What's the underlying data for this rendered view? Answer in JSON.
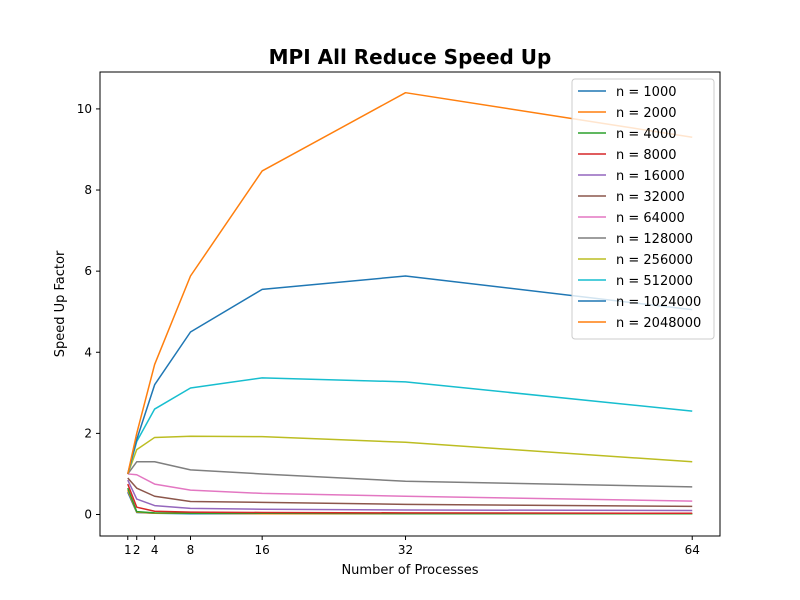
{
  "chart_data": {
    "type": "line",
    "title": "MPI All Reduce Speed Up",
    "xlabel": "Number of Processes",
    "ylabel": "Speed Up Factor",
    "x": [
      1,
      2,
      4,
      8,
      16,
      32,
      64
    ],
    "xticks": [
      1,
      2,
      4,
      8,
      16,
      32,
      64
    ],
    "xtick_labels": [
      "1",
      "2",
      "4",
      "8",
      "16",
      "32",
      "64"
    ],
    "yticks": [
      0,
      2,
      4,
      6,
      8,
      10
    ],
    "ytick_labels": [
      "0",
      "2",
      "4",
      "6",
      "8",
      "10"
    ],
    "xlim": [
      -2.1,
      67.1
    ],
    "ylim": [
      -0.53,
      10.91
    ],
    "grid": false,
    "legend_position": "top-right",
    "series": [
      {
        "name": "n = 1000",
        "color": "#1f77b4",
        "values": [
          0.55,
          0.05,
          0.03,
          0.02,
          0.02,
          0.02,
          0.02
        ]
      },
      {
        "name": "n = 2000",
        "color": "#ff7f0e",
        "values": [
          0.6,
          0.06,
          0.03,
          0.03,
          0.02,
          0.02,
          0.02
        ]
      },
      {
        "name": "n = 4000",
        "color": "#2ca02c",
        "values": [
          0.65,
          0.07,
          0.04,
          0.03,
          0.03,
          0.02,
          0.02
        ]
      },
      {
        "name": "n = 8000",
        "color": "#d62728",
        "values": [
          0.75,
          0.18,
          0.08,
          0.06,
          0.05,
          0.04,
          0.03
        ]
      },
      {
        "name": "n = 16000",
        "color": "#9467bd",
        "values": [
          0.85,
          0.38,
          0.22,
          0.15,
          0.13,
          0.11,
          0.1
        ]
      },
      {
        "name": "n = 32000",
        "color": "#8c564b",
        "values": [
          0.9,
          0.65,
          0.45,
          0.32,
          0.3,
          0.25,
          0.2
        ]
      },
      {
        "name": "n = 64000",
        "color": "#e377c2",
        "values": [
          1.0,
          0.98,
          0.75,
          0.6,
          0.52,
          0.45,
          0.33
        ]
      },
      {
        "name": "n = 128000",
        "color": "#7f7f7f",
        "values": [
          1.0,
          1.3,
          1.3,
          1.1,
          1.0,
          0.82,
          0.68
        ]
      },
      {
        "name": "n = 256000",
        "color": "#bcbd22",
        "values": [
          1.0,
          1.6,
          1.9,
          1.93,
          1.92,
          1.78,
          1.3
        ]
      },
      {
        "name": "n = 512000",
        "color": "#17becf",
        "values": [
          1.0,
          1.8,
          2.6,
          3.12,
          3.37,
          3.27,
          2.55
        ]
      },
      {
        "name": "n = 1024000",
        "color": "#1f77b4",
        "values": [
          1.0,
          1.85,
          3.2,
          4.5,
          5.55,
          5.88,
          5.05
        ]
      },
      {
        "name": "n = 2048000",
        "color": "#ff7f0e",
        "values": [
          1.0,
          2.0,
          3.7,
          5.88,
          8.47,
          10.4,
          9.3
        ]
      }
    ]
  }
}
